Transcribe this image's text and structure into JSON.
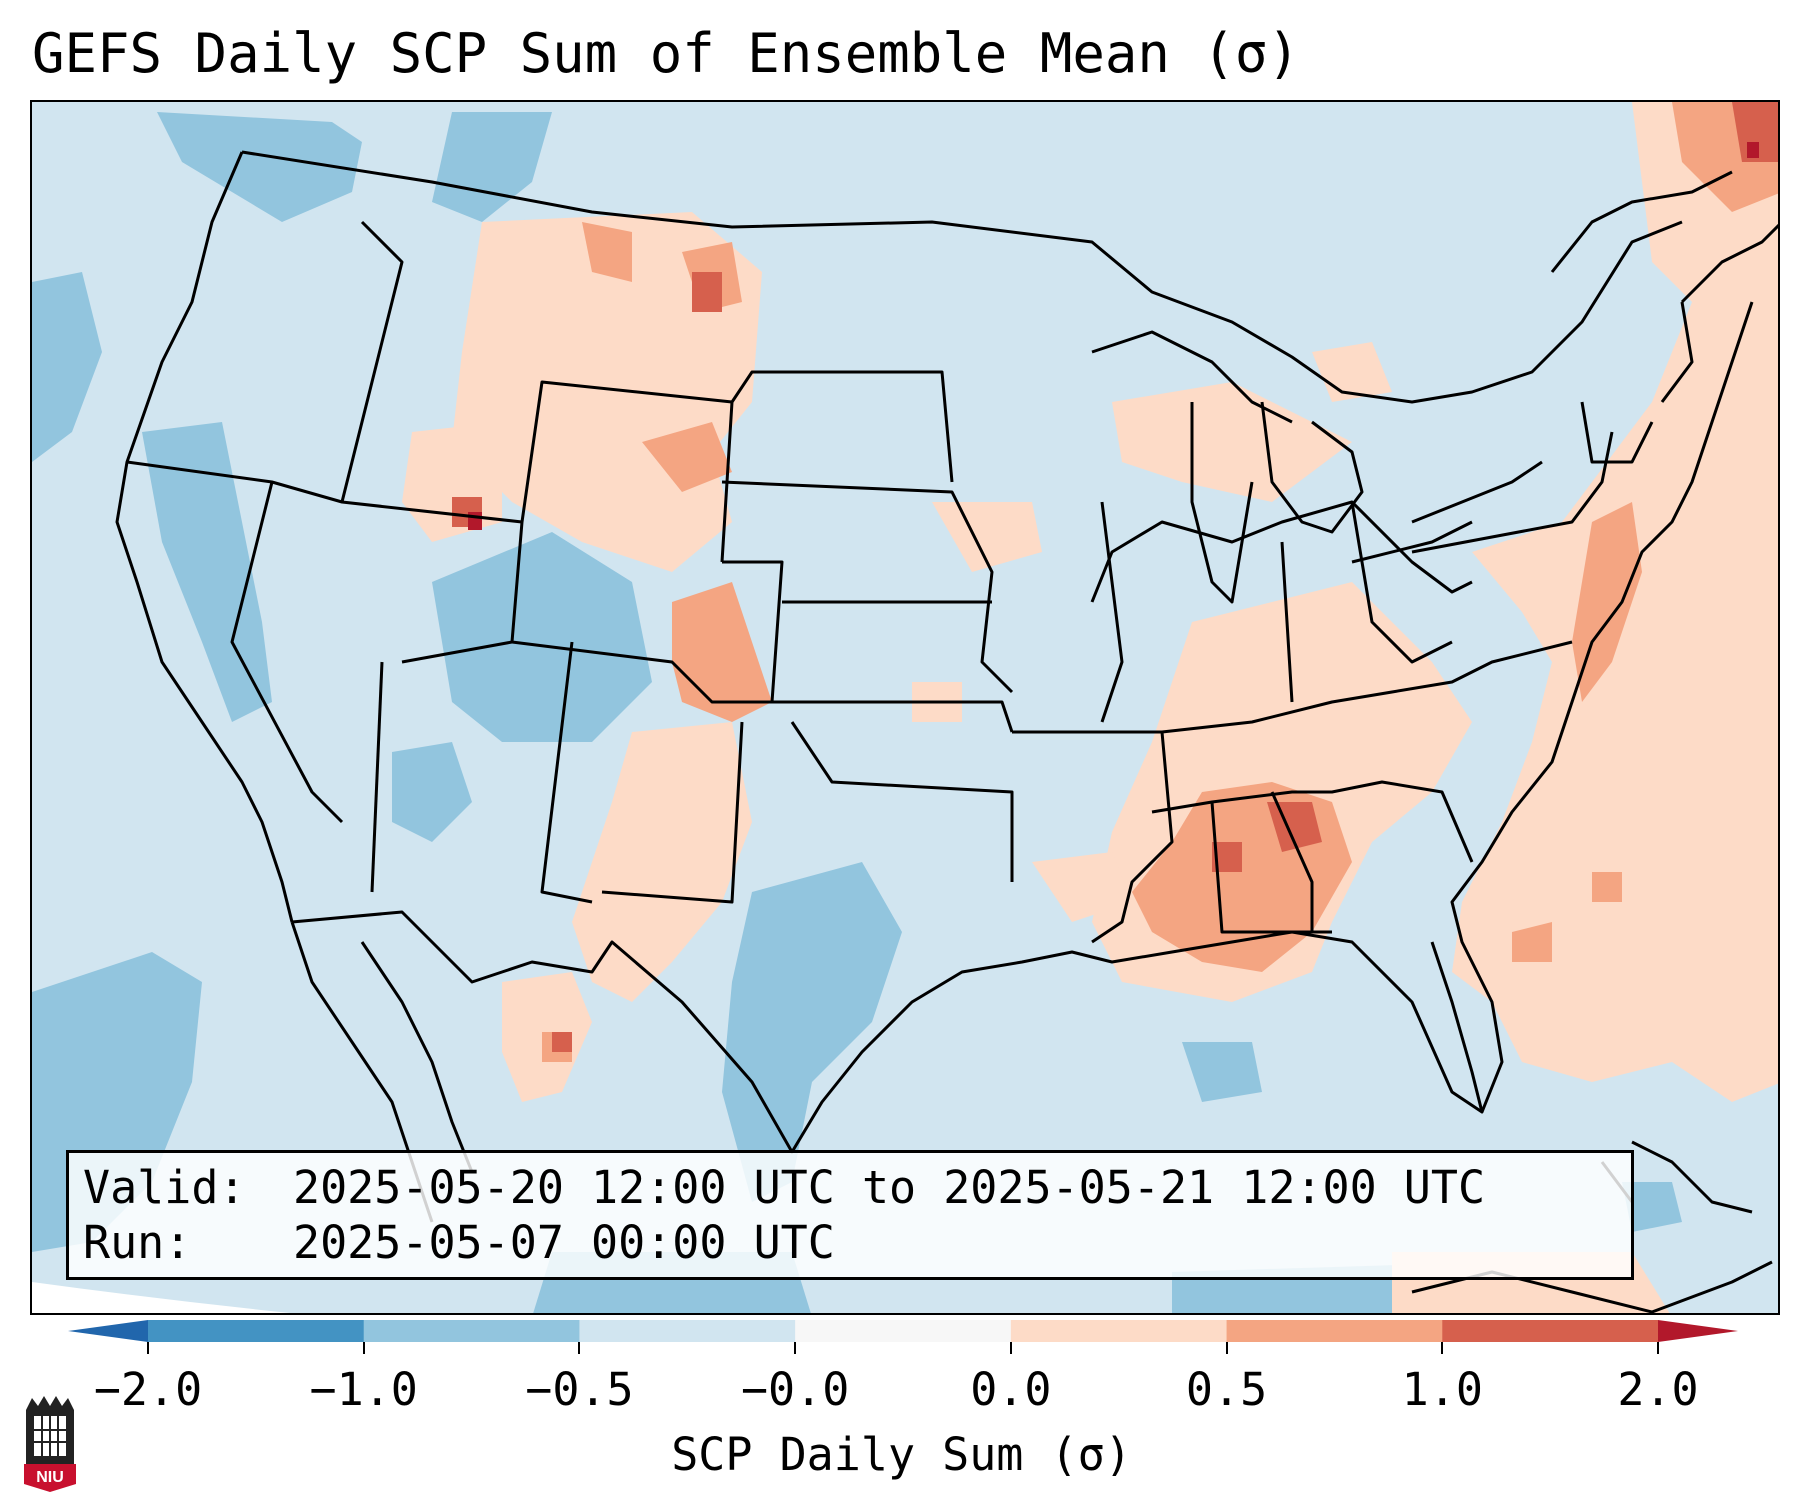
{
  "title": "GEFS Daily SCP Sum of Ensemble Mean (σ)",
  "map": {
    "region": "CONUS",
    "ocean_color": "#d1e5f0",
    "outside_projection_color": "#ffffff",
    "border_color": "#000000"
  },
  "info": {
    "valid_key": "Valid:",
    "valid_value": "2025-05-20 12:00 UTC to 2025-05-21 12:00 UTC",
    "run_key": "Run:",
    "run_value": "2025-05-07 00:00 UTC"
  },
  "colorbar": {
    "label": "SCP Daily Sum (σ)",
    "ticks": [
      "−2.0",
      "−1.0",
      "−0.5",
      "−0.0",
      "0.0",
      "0.5",
      "1.0",
      "2.0"
    ],
    "bin_colors": [
      "#4393c3",
      "#92c5de",
      "#d1e5f0",
      "#f7f7f7",
      "#fddbc7",
      "#f4a582",
      "#d6604d"
    ],
    "under_color": "#2166ac",
    "over_color": "#b2182b"
  },
  "logo": {
    "text": "NIU",
    "color": "#c8102e"
  }
}
